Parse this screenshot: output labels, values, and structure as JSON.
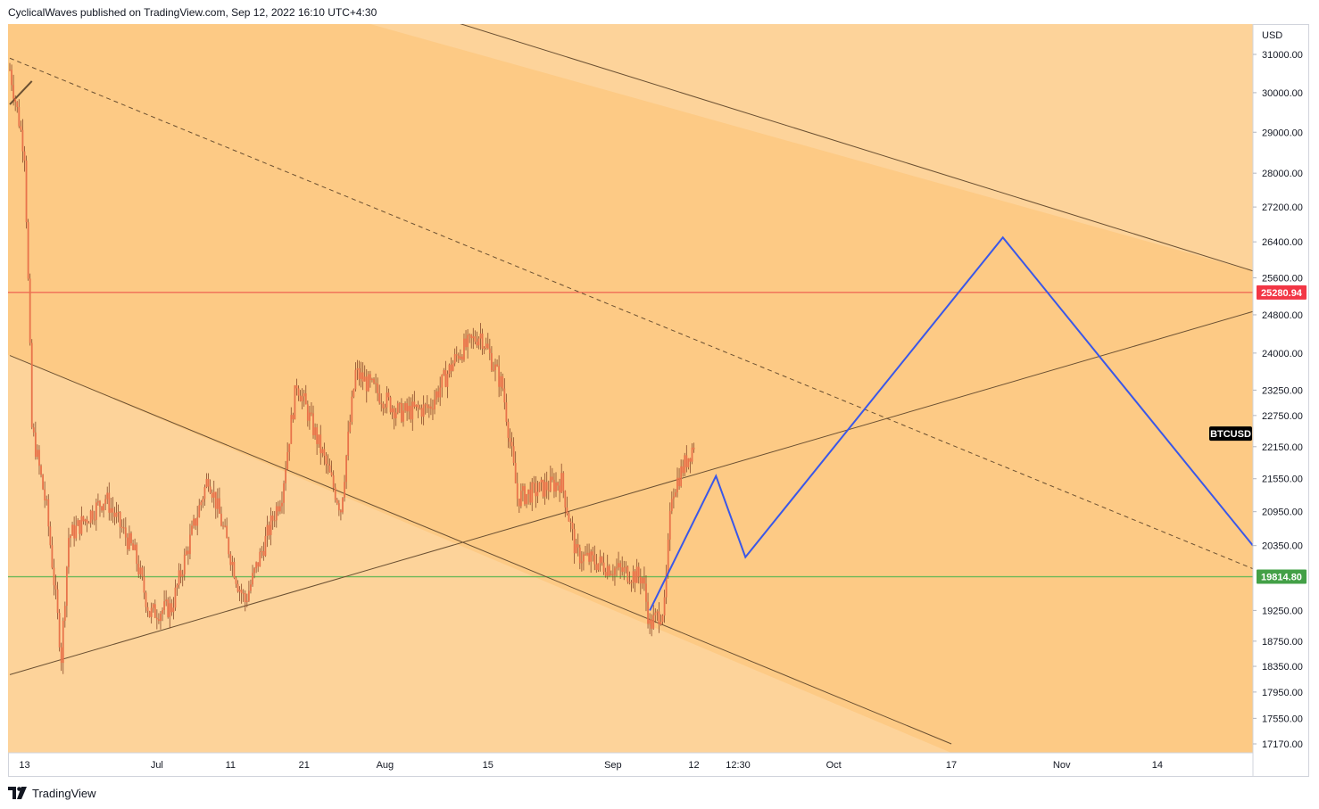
{
  "header": {
    "text": "CyclicalWaves published on TradingView.com, Sep 12, 2022 16:10 UTC+4:30"
  },
  "footer": {
    "brand": "TradingView",
    "logo_icon": "tradingview-logo-icon"
  },
  "colors": {
    "zone_dark": "#fdca85",
    "zone_light": "#fdd39a",
    "candles": "#e8734a",
    "trendlines": "#6b5032",
    "projection": "#3a57e8",
    "resistance": "#ef6c56",
    "support": "#6fb85a",
    "badge_btc": "#000000",
    "badge_resistance": "#f23645",
    "badge_support": "#43a047"
  },
  "chart_data": {
    "type": "candlestick",
    "symbol_label": "BTCUSD",
    "currency_label": "USD",
    "y_axis": {
      "scale": "log",
      "ticks": [
        "31000.00",
        "30000.00",
        "29000.00",
        "28000.00",
        "27200.00",
        "26400.00",
        "25600.00",
        "24800.00",
        "24000.00",
        "23250.00",
        "22750.00",
        "22150.00",
        "21550.00",
        "20950.00",
        "20350.00",
        "19250.00",
        "18750.00",
        "18350.00",
        "17950.00",
        "17550.00",
        "17170.00"
      ]
    },
    "x_axis": {
      "ticks": [
        "13",
        "Jul",
        "11",
        "21",
        "Aug",
        "15",
        "Sep",
        "12",
        "12:30",
        "Oct",
        "17",
        "Nov",
        "14"
      ],
      "range": [
        "2022-06-11",
        "2022-11-27"
      ]
    },
    "price_lines": [
      {
        "name": "resistance",
        "value": 25280.94,
        "label": "25280.94"
      },
      {
        "name": "support",
        "value": 19814.8,
        "label": "19814.80"
      }
    ],
    "last_price": {
      "label": "BTCUSD",
      "value": 22400
    },
    "price_series_keypoints": [
      [
        "2022-06-11",
        30600
      ],
      [
        "2022-06-13",
        28500
      ],
      [
        "2022-06-14",
        22500
      ],
      [
        "2022-06-16",
        21000
      ],
      [
        "2022-06-18",
        18500
      ],
      [
        "2022-06-19",
        20500
      ],
      [
        "2022-06-24",
        21200
      ],
      [
        "2022-06-28",
        20200
      ],
      [
        "2022-06-30",
        19200
      ],
      [
        "2022-07-03",
        19300
      ],
      [
        "2022-07-08",
        21600
      ],
      [
        "2022-07-12",
        19700
      ],
      [
        "2022-07-13",
        19400
      ],
      [
        "2022-07-18",
        21300
      ],
      [
        "2022-07-20",
        23400
      ],
      [
        "2022-07-26",
        21000
      ],
      [
        "2022-07-28",
        23600
      ],
      [
        "2022-08-03",
        22800
      ],
      [
        "2022-08-07",
        22900
      ],
      [
        "2022-08-11",
        24000
      ],
      [
        "2022-08-14",
        24400
      ],
      [
        "2022-08-17",
        23300
      ],
      [
        "2022-08-19",
        21200
      ],
      [
        "2022-08-25",
        21500
      ],
      [
        "2022-08-27",
        20200
      ],
      [
        "2022-08-31",
        20000
      ],
      [
        "2022-09-05",
        19800
      ],
      [
        "2022-09-06",
        19000
      ],
      [
        "2022-09-08",
        19300
      ],
      [
        "2022-09-09",
        21300
      ],
      [
        "2022-09-12",
        22200
      ]
    ],
    "projection_path": [
      [
        "2022-09-06",
        19250
      ],
      [
        "2022-09-15",
        21600
      ],
      [
        "2022-09-19",
        20150
      ],
      [
        "2022-10-24",
        26500
      ],
      [
        "2022-11-27",
        20350
      ]
    ],
    "trendlines": [
      {
        "name": "channel-upper",
        "style": "solid",
        "points": [
          [
            "2022-07-30",
            32600
          ],
          [
            "2022-11-27",
            25750
          ]
        ]
      },
      {
        "name": "dashed-diagonal",
        "style": "dashed",
        "points": [
          [
            "2022-06-11",
            30900
          ],
          [
            "2022-11-27",
            19950
          ]
        ]
      },
      {
        "name": "rising-support",
        "style": "solid",
        "points": [
          [
            "2022-06-11",
            18220
          ],
          [
            "2022-11-27",
            24870
          ]
        ]
      },
      {
        "name": "channel-lower",
        "style": "solid",
        "points": [
          [
            "2022-06-11",
            23950
          ],
          [
            "2022-10-17",
            17170
          ]
        ]
      },
      {
        "name": "short-segment",
        "style": "solid",
        "points": [
          [
            "2022-06-11",
            29700
          ],
          [
            "2022-06-14",
            30300
          ]
        ]
      }
    ],
    "shaded_regions": [
      {
        "name": "zone-band-main",
        "color": "zone_dark"
      },
      {
        "name": "zone-top-right",
        "color": "zone_light"
      },
      {
        "name": "zone-bottom-left",
        "color": "zone_light"
      }
    ]
  }
}
